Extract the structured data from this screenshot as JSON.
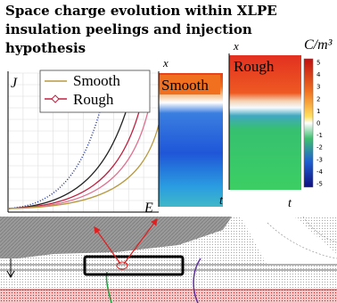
{
  "title_lines": [
    "Space charge evolution within XLPE",
    "insulation peelings and injection",
    "hypothesis"
  ],
  "plot": {
    "y_label": "J",
    "x_label": "E",
    "legend": [
      "Smooth",
      "Rough"
    ]
  },
  "maps": [
    {
      "label": "Smooth",
      "y_label": "x",
      "x_label": "t"
    },
    {
      "label": "Rough",
      "y_label": "x",
      "x_label": "t"
    }
  ],
  "colorbar": {
    "unit": "C/m³",
    "ticks": [
      5,
      4,
      3,
      2,
      1,
      0,
      -1,
      -2,
      -3,
      -4,
      -5
    ]
  }
}
